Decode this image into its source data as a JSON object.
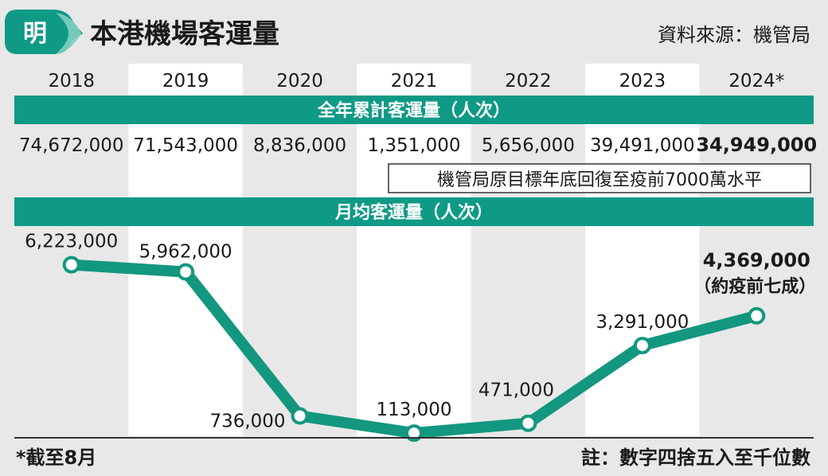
{
  "header": {
    "logo_char": "明",
    "title": "本港機場客運量",
    "source": "資料來源：機管局"
  },
  "footer": {
    "footnote": "*截至8月",
    "note": "註：數字四捨五入至千位數"
  },
  "colors": {
    "teal": "#0f9a86",
    "band_text": "#ffffff",
    "line": "#13977f",
    "background": "#e8e8e8",
    "column_light": "#ffffff"
  },
  "chart_data": {
    "type": "line",
    "categories": [
      "2018",
      "2019",
      "2020",
      "2021",
      "2022",
      "2023",
      "2024*"
    ],
    "annual_total": {
      "label": "全年累計客運量（人次）",
      "values": [
        74672000,
        71543000,
        8836000,
        1351000,
        5656000,
        39491000,
        34949000
      ],
      "display": [
        "74,672,000",
        "71,543,000",
        "8,836,000",
        "1,351,000",
        "5,656,000",
        "39,491,000",
        "34,949,000"
      ],
      "annotation": "機管局原目標年底回復至疫前7000萬水平"
    },
    "monthly_average": {
      "label": "月均客運量（人次）",
      "values": [
        6223000,
        5962000,
        736000,
        113000,
        471000,
        3291000,
        4369000
      ],
      "display": [
        "6,223,000",
        "5,962,000",
        "736,000",
        "113,000",
        "471,000",
        "3,291,000",
        "4,369,000"
      ],
      "last_note": "（約疫前七成）"
    },
    "grid": false,
    "legend": "none"
  }
}
